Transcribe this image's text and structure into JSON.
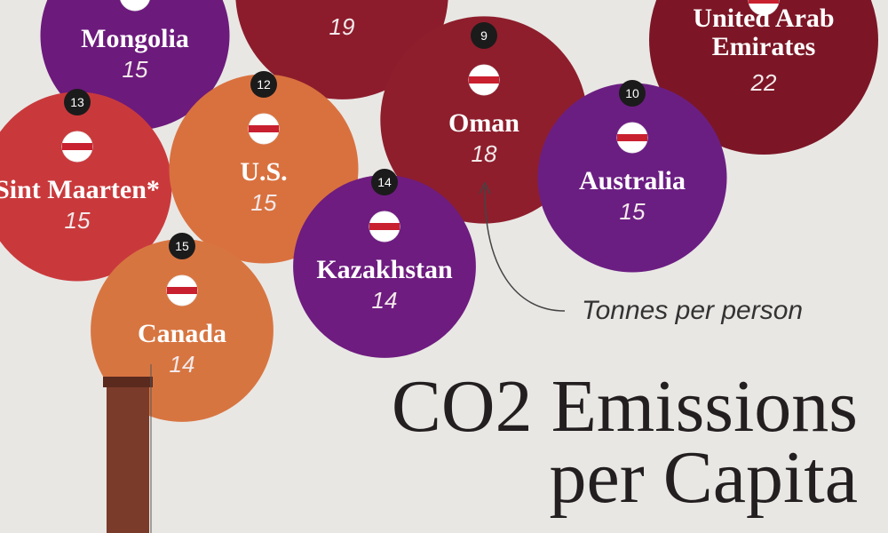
{
  "chart_data": {
    "type": "bubble",
    "title": "CO2 Emissions per Capita",
    "annotation": "Tonnes per person",
    "categories": [
      null,
      "Mongolia",
      "United Arab Emirates",
      "Oman",
      "Sint Maarten*",
      "U.S.",
      "Australia",
      "Kazakhstan",
      "Canada"
    ],
    "ranks": [
      null,
      null,
      null,
      9,
      13,
      12,
      10,
      14,
      15
    ],
    "values": [
      19,
      15,
      22,
      18,
      15,
      15,
      15,
      14,
      14
    ],
    "colors": [
      "#8c1c2c",
      "#6c1a7c",
      "#7c1626",
      "#8e1e2c",
      "#c9393c",
      "#d9713f",
      "#6b1e82",
      "#6e1c80",
      "#d77541"
    ]
  }
}
